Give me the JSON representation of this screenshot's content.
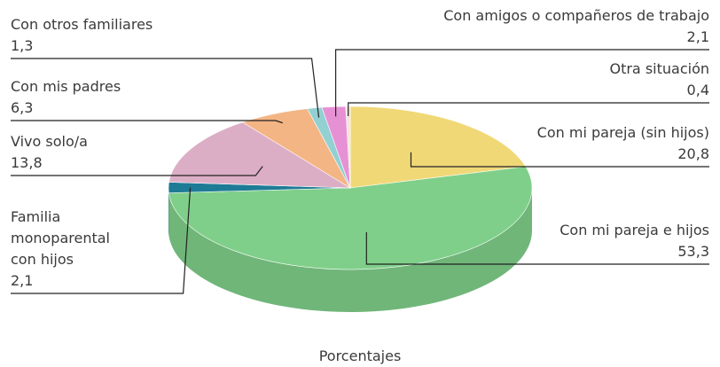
{
  "chart_data": {
    "type": "pie",
    "caption": "Porcentajes",
    "categories": [
      "Con mi pareja (sin hijos)",
      "Con mi pareja e hijos",
      "Familia monoparental con hijos",
      "Vivo solo/a",
      "Con mis padres",
      "Con otros familiares",
      "Con amigos o compañeros de trabajo",
      "Otra situación"
    ],
    "values": [
      20.8,
      53.3,
      2.1,
      13.8,
      6.3,
      1.3,
      2.1,
      0.4
    ],
    "value_labels": [
      "20,8",
      "53,3",
      "2,1",
      "13,8",
      "6,3",
      "1,3",
      "2,1",
      "0,4"
    ],
    "colors": [
      "#f1d877",
      "#7fcf8a",
      "#1e7b95",
      "#dcaec6",
      "#f4b584",
      "#93d0d2",
      "#e691d4",
      "#f3e3df"
    ]
  }
}
